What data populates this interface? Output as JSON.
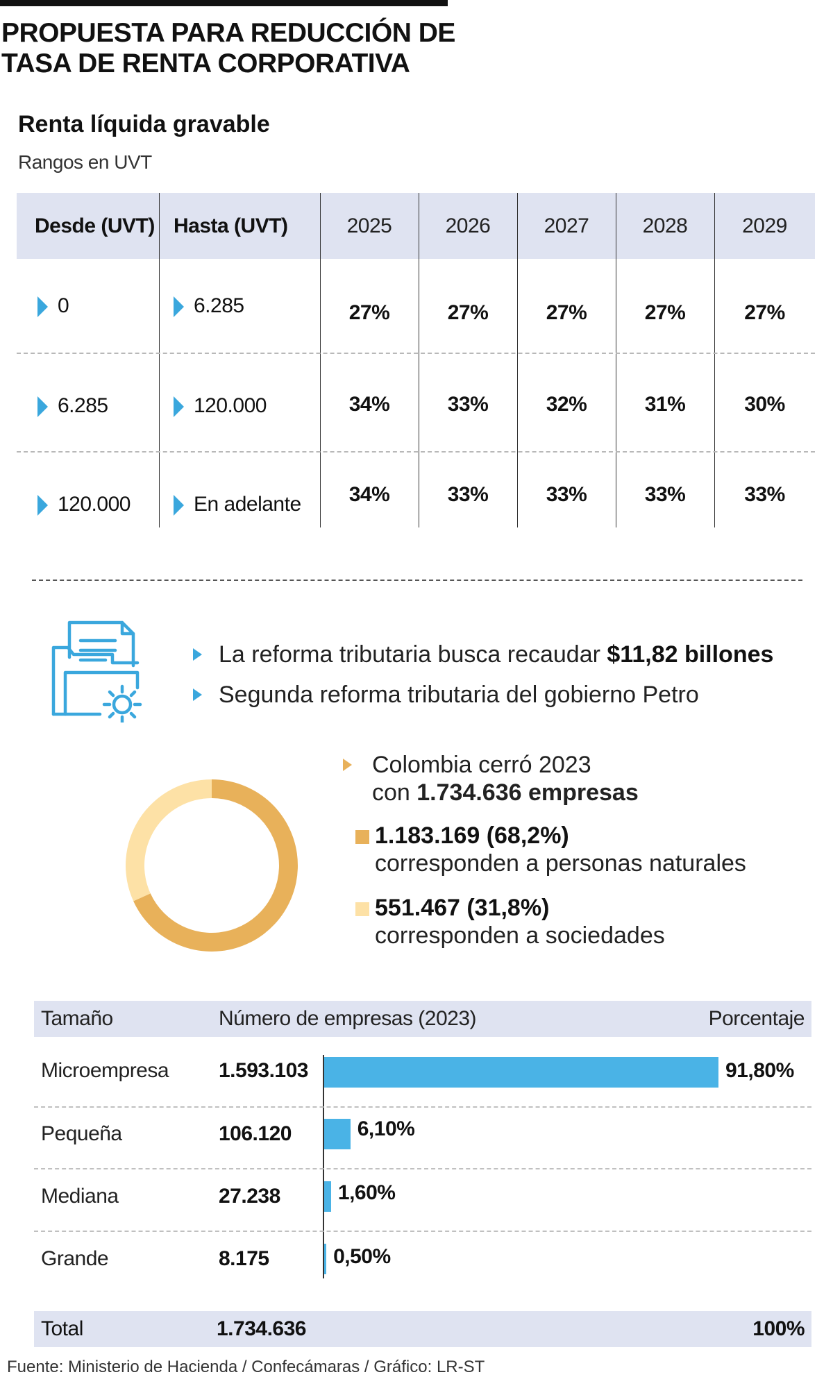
{
  "header": {
    "title_line1": "PROPUESTA PARA REDUCCIÓN DE",
    "title_line2": "TASA DE RENTA CORPORATIVA"
  },
  "rates_table": {
    "title": "Renta líquida gravable",
    "subtitle": "Rangos en UVT",
    "col_desde": "Desde (UVT)",
    "col_hasta": "Hasta (UVT)",
    "years": [
      "2025",
      "2026",
      "2027",
      "2028",
      "2029"
    ],
    "rows": [
      {
        "desde": "0",
        "hasta": "6.285",
        "rates": [
          "27%",
          "27%",
          "27%",
          "27%",
          "27%"
        ]
      },
      {
        "desde": "6.285",
        "hasta": "120.000",
        "rates": [
          "34%",
          "33%",
          "32%",
          "31%",
          "30%"
        ]
      },
      {
        "desde": "120.000",
        "hasta": "En adelante",
        "rates": [
          "34%",
          "33%",
          "33%",
          "33%",
          "33%"
        ]
      }
    ]
  },
  "info": {
    "icon": "folder-document-gear-icon",
    "bullet1_text": "La reforma tributaria busca recaudar ",
    "bullet1_bold": "$11,82 billones",
    "bullet2_text": "Segunda reforma tributaria del gobierno Petro"
  },
  "companies": {
    "intro_line1": "Colombia cerró 2023",
    "intro_line2_text": "con ",
    "intro_line2_bold": "1.734.636 empresas",
    "legend": [
      {
        "value": "1.183.169 (68,2%)",
        "label": "corresponden a personas naturales",
        "color": "#e8b15a"
      },
      {
        "value": "551.467 (31,8%)",
        "label": "corresponden a sociedades",
        "color": "#fde1a6"
      }
    ]
  },
  "size_table": {
    "col_size": "Tamaño",
    "col_count": "Número de empresas (2023)",
    "col_pct": "Porcentaje",
    "rows": [
      {
        "size": "Microempresa",
        "count": "1.593.103",
        "pct_label": "91,80%",
        "pct": 91.8
      },
      {
        "size": "Pequeña",
        "count": "106.120",
        "pct_label": "6,10%",
        "pct": 6.1
      },
      {
        "size": "Mediana",
        "count": "27.238",
        "pct_label": "1,60%",
        "pct": 1.6
      },
      {
        "size": "Grande",
        "count": "8.175",
        "pct_label": "0,50%",
        "pct": 0.5
      }
    ],
    "total_label": "Total",
    "total_count": "1.734.636",
    "total_pct": "100%",
    "bar_color": "#4ab3e6"
  },
  "chart_data": [
    {
      "type": "pie",
      "categories": [
        "personas naturales",
        "sociedades"
      ],
      "values": [
        68.2,
        31.8
      ],
      "counts": [
        1183169,
        551467
      ],
      "total": 1734636,
      "colors": [
        "#e8b15a",
        "#fde1a6"
      ]
    },
    {
      "type": "bar",
      "orientation": "horizontal",
      "categories": [
        "Microempresa",
        "Pequeña",
        "Mediana",
        "Grande"
      ],
      "values": [
        91.8,
        6.1,
        1.6,
        0.5
      ],
      "counts": [
        1593103,
        106120,
        27238,
        8175
      ],
      "xlim": [
        0,
        100
      ]
    }
  ],
  "footer": {
    "source": "Fuente: Ministerio de Hacienda / Confecámaras / Gráfico: LR-ST"
  }
}
